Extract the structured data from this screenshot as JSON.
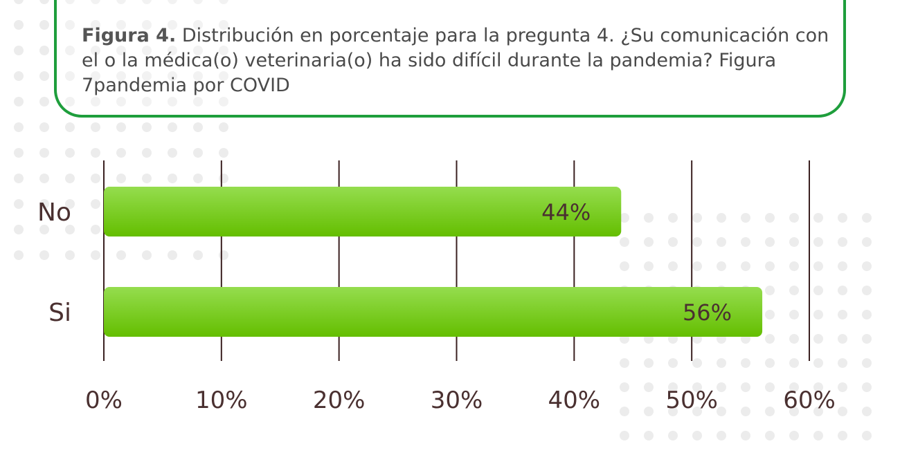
{
  "caption": {
    "label": "Figura 4.",
    "text": " Distribución en porcentaje para la pregunta 4. ¿Su comunicación con el o la médica(o) veterinaria(o) ha sido difícil durante la pandemia? Figura 7pandemia por COVID"
  },
  "colors": {
    "bar_top": "#95dd4e",
    "bar_bottom": "#64be00",
    "frame": "#1e9e3c",
    "grid": "#3a2020"
  },
  "chart_data": {
    "type": "bar",
    "orientation": "horizontal",
    "categories": [
      "No",
      "Si"
    ],
    "values": [
      44,
      56
    ],
    "data_labels": [
      "44%",
      "56%"
    ],
    "xlim": [
      0,
      60
    ],
    "xticks": [
      "0%",
      "10%",
      "20%",
      "30%",
      "40%",
      "50%",
      "60%"
    ],
    "grid": true
  }
}
